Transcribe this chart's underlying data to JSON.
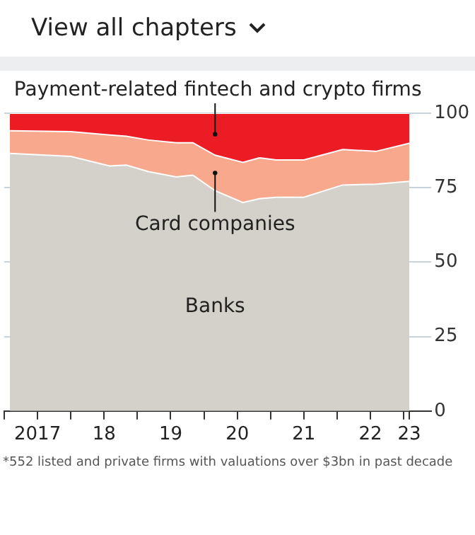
{
  "chart_data": {
    "type": "area",
    "stacked": true,
    "x": [
      "2017-02",
      "2018-01",
      "2018-08",
      "2018-11",
      "2019-03",
      "2019-08",
      "2019-11",
      "2020-03",
      "2020-08",
      "2020-11",
      "2021-02",
      "2021-07",
      "2022-02",
      "2022-08",
      "2023-02"
    ],
    "series": [
      {
        "name": "Banks",
        "color": "#d4d1ca",
        "values": [
          86.5,
          85.5,
          82.3,
          82.6,
          80.4,
          78.6,
          79.2,
          74,
          70,
          71.3,
          71.8,
          71.8,
          75.9,
          76.2,
          77.1
        ]
      },
      {
        "name": "Card companies",
        "color": "#f8a88c",
        "values": [
          7.6,
          8.3,
          10.4,
          9.7,
          10.6,
          11.5,
          10.9,
          11.9,
          13.5,
          13.7,
          12.5,
          12.5,
          11.9,
          11,
          12.8
        ]
      },
      {
        "name": "Payment-related fintech and crypto firms",
        "color": "#ec1c24",
        "values": [
          5.9,
          6.2,
          7.3,
          7.7,
          9,
          9.9,
          9.9,
          14.1,
          16.5,
          15,
          15.7,
          15.7,
          12.2,
          12.8,
          10.1
        ]
      }
    ],
    "ylim": [
      0,
      100
    ],
    "yticks": [
      0,
      25,
      50,
      75,
      100
    ],
    "xlim": [
      "2017-01",
      "2023-06"
    ],
    "xticks": [
      {
        "value": "2017-01",
        "label": null
      },
      {
        "value": "2017-07",
        "label": "2017"
      },
      {
        "value": "2018-01",
        "label": null
      },
      {
        "value": "2018-07",
        "label": "18"
      },
      {
        "value": "2019-01",
        "label": null
      },
      {
        "value": "2019-07",
        "label": "19"
      },
      {
        "value": "2020-01",
        "label": null
      },
      {
        "value": "2020-07",
        "label": "20"
      },
      {
        "value": "2021-01",
        "label": null
      },
      {
        "value": "2021-07",
        "label": "21"
      },
      {
        "value": "2022-01",
        "label": null
      },
      {
        "value": "2022-07",
        "label": "22"
      },
      {
        "value": "2023-01",
        "label": null
      },
      {
        "value": "2023-02",
        "label": "23"
      }
    ],
    "grid": "y",
    "legend": false,
    "annotations": [
      "View all chapters",
      "*552 listed and private firms with valuations over $3bn in past decade"
    ]
  }
}
